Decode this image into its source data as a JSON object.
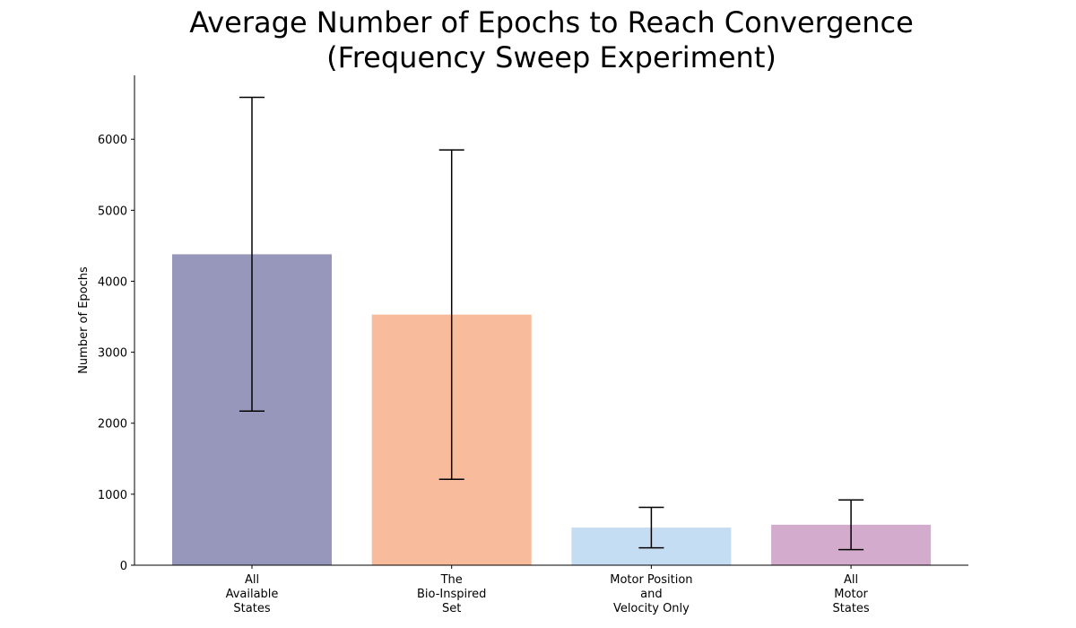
{
  "chart_data": {
    "type": "bar",
    "title": "Average Number of Epochs to Reach Convergence",
    "subtitle": "(Frequency Sweep Experiment)",
    "xlabel": "",
    "ylabel": "Number of Epochs",
    "ylim": [
      0,
      6900
    ],
    "yticks": [
      0,
      1000,
      2000,
      3000,
      4000,
      5000,
      6000
    ],
    "grid": false,
    "categories": [
      [
        "All",
        "Available",
        "States"
      ],
      [
        "The",
        "Bio-Inspired",
        "Set"
      ],
      [
        "Motor Position",
        "and",
        "Velocity Only"
      ],
      [
        "All",
        "Motor",
        "States"
      ]
    ],
    "values": [
      4380,
      3530,
      530,
      570
    ],
    "error": [
      2210,
      2320,
      285,
      350
    ],
    "colors": [
      "#9797bb",
      "#f8bb9c",
      "#c5ddf2",
      "#d3abcd"
    ]
  }
}
